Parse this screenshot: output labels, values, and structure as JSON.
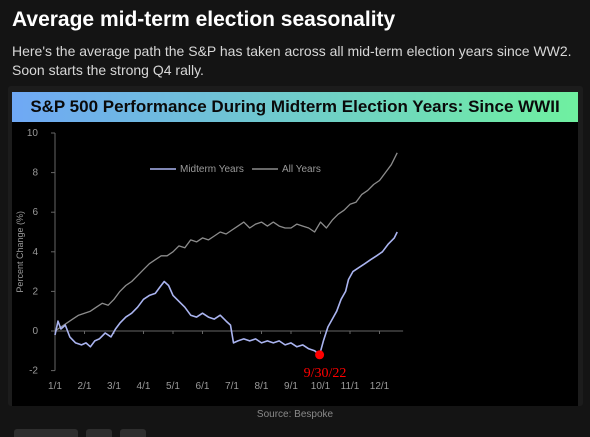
{
  "post": {
    "title": "Average mid-term election seasonality",
    "text": "Here's the average path the S&P has taken across all mid-term election years since WW2. Soon starts the strong Q4 rally.",
    "source": "Source: Bespoke"
  },
  "colors": {
    "banner_left": "#6fa8f5",
    "banner_right": "#6ff0a0",
    "midterm_line": "#aab4f0",
    "all_years_line": "#8c8c8c",
    "marker": "#ff0000"
  },
  "chart_data": {
    "type": "line",
    "title": "S&P 500 Performance During Midterm Election Years: Since WWII",
    "ylabel": "Percent Change (%)",
    "xlabel": "",
    "ylim": [
      -2,
      10
    ],
    "yticks": [
      -2,
      0,
      2,
      4,
      6,
      8,
      10
    ],
    "xticks": [
      "1/1",
      "2/1",
      "3/1",
      "4/1",
      "5/1",
      "6/1",
      "7/1",
      "8/1",
      "9/1",
      "10/1",
      "11/1",
      "12/1"
    ],
    "grid": false,
    "legend_position": "top-left",
    "x_unit": "month index (0 = Jan 1, 11 = Dec 1)",
    "series": [
      {
        "name": "Midterm Years",
        "x": [
          0,
          0.1,
          0.2,
          0.35,
          0.5,
          0.7,
          0.9,
          1.05,
          1.2,
          1.35,
          1.5,
          1.7,
          1.9,
          2.05,
          2.2,
          2.4,
          2.6,
          2.8,
          3.0,
          3.2,
          3.4,
          3.55,
          3.7,
          3.85,
          4.0,
          4.2,
          4.4,
          4.6,
          4.8,
          5.0,
          5.2,
          5.4,
          5.6,
          5.8,
          5.95,
          6.05,
          6.2,
          6.4,
          6.6,
          6.8,
          7.0,
          7.2,
          7.4,
          7.6,
          7.8,
          8.0,
          8.2,
          8.4,
          8.6,
          8.8,
          8.97,
          9.1,
          9.25,
          9.4,
          9.55,
          9.7,
          9.85,
          9.95,
          10.1,
          10.3,
          10.5,
          10.7,
          10.9,
          11.1,
          11.3,
          11.5,
          11.6
        ],
        "y": [
          -0.2,
          0.5,
          0.1,
          0.3,
          -0.3,
          -0.6,
          -0.7,
          -0.6,
          -0.8,
          -0.5,
          -0.4,
          -0.1,
          -0.3,
          0.1,
          0.4,
          0.7,
          0.9,
          1.2,
          1.6,
          1.8,
          1.9,
          2.2,
          2.5,
          2.3,
          1.8,
          1.5,
          1.2,
          0.8,
          0.7,
          0.9,
          0.7,
          0.6,
          0.8,
          0.5,
          0.3,
          -0.6,
          -0.5,
          -0.4,
          -0.5,
          -0.4,
          -0.6,
          -0.5,
          -0.6,
          -0.5,
          -0.7,
          -0.6,
          -0.8,
          -0.7,
          -0.9,
          -1.0,
          -1.2,
          -0.5,
          0.2,
          0.6,
          1.0,
          1.6,
          2.0,
          2.6,
          3.0,
          3.2,
          3.4,
          3.6,
          3.8,
          4.0,
          4.4,
          4.7,
          5.0
        ]
      },
      {
        "name": "All Years",
        "x": [
          0,
          0.2,
          0.4,
          0.6,
          0.8,
          1.0,
          1.2,
          1.4,
          1.6,
          1.8,
          2.0,
          2.2,
          2.4,
          2.6,
          2.8,
          3.0,
          3.2,
          3.4,
          3.6,
          3.8,
          4.0,
          4.2,
          4.4,
          4.6,
          4.8,
          5.0,
          5.2,
          5.4,
          5.6,
          5.8,
          6.0,
          6.2,
          6.4,
          6.6,
          6.8,
          7.0,
          7.2,
          7.4,
          7.6,
          7.8,
          8.0,
          8.2,
          8.4,
          8.6,
          8.8,
          9.0,
          9.2,
          9.4,
          9.6,
          9.8,
          10.0,
          10.2,
          10.4,
          10.6,
          10.8,
          11.0,
          11.2,
          11.4,
          11.6
        ],
        "y": [
          0.0,
          0.2,
          0.4,
          0.6,
          0.8,
          0.9,
          1.0,
          1.2,
          1.4,
          1.3,
          1.6,
          2.0,
          2.3,
          2.5,
          2.8,
          3.1,
          3.4,
          3.6,
          3.8,
          3.8,
          4.0,
          4.3,
          4.2,
          4.6,
          4.5,
          4.7,
          4.6,
          4.8,
          5.0,
          4.9,
          5.1,
          5.3,
          5.5,
          5.2,
          5.4,
          5.5,
          5.3,
          5.5,
          5.3,
          5.2,
          5.2,
          5.4,
          5.3,
          5.2,
          5.0,
          5.5,
          5.2,
          5.6,
          5.9,
          6.1,
          6.4,
          6.5,
          6.9,
          7.1,
          7.4,
          7.6,
          8.0,
          8.4,
          9.0
        ]
      }
    ],
    "annotations": [
      {
        "text": "9/30/22",
        "x": 8.97,
        "y": -1.2,
        "color": "#ff0000"
      }
    ]
  }
}
